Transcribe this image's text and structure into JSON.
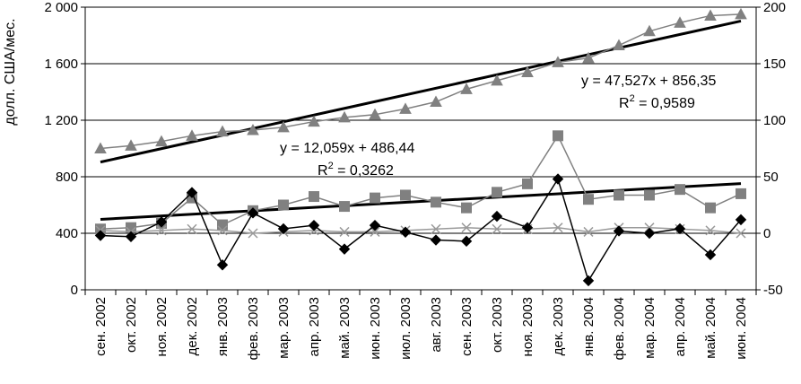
{
  "chart_data": {
    "type": "line",
    "ylabel": "долл. США/мес.",
    "ylim_left": [
      0,
      2000
    ],
    "ylim_right": [
      -50,
      200
    ],
    "y_ticks_left": [
      "0",
      "400",
      "800",
      "1 200",
      "1 600",
      "2 000"
    ],
    "y_ticks_right": [
      "-50",
      "0",
      "50",
      "100",
      "150",
      "200"
    ],
    "grid": true,
    "categories": [
      "сен. 2002",
      "окт. 2002",
      "ноя. 2002",
      "дек. 2002",
      "янв. 2003",
      "фев. 2003",
      "мар. 2003",
      "апр. 2003",
      "май. 2003",
      "июн. 2003",
      "июл. 2003",
      "авг. 2003",
      "сен. 2003",
      "окт. 2003",
      "ноя. 2003",
      "дек. 2003",
      "янв. 2004",
      "фев. 2004",
      "мар. 2004",
      "апр. 2004",
      "май. 2004",
      "июн. 2004"
    ],
    "series": [
      {
        "marker": "triangle",
        "axis": "left",
        "color": "#808080",
        "values": [
          1000,
          1020,
          1050,
          1090,
          1120,
          1130,
          1150,
          1190,
          1220,
          1240,
          1280,
          1330,
          1420,
          1480,
          1540,
          1610,
          1640,
          1730,
          1830,
          1890,
          1940,
          1950
        ]
      },
      {
        "marker": "square",
        "axis": "left",
        "color": "#808080",
        "values": [
          430,
          440,
          470,
          650,
          460,
          560,
          600,
          660,
          590,
          650,
          670,
          620,
          580,
          690,
          750,
          1090,
          640,
          670,
          670,
          710,
          580,
          680
        ]
      },
      {
        "marker": "cross",
        "axis": "left",
        "color": "#999999",
        "values": [
          420,
          410,
          420,
          430,
          420,
          400,
          410,
          420,
          410,
          410,
          420,
          430,
          440,
          430,
          430,
          440,
          410,
          440,
          440,
          430,
          420,
          400
        ]
      },
      {
        "marker": "diamond",
        "axis": "right",
        "color": "#000000",
        "values": [
          -2,
          -3,
          10,
          36,
          -28,
          18,
          4,
          7,
          -14,
          7,
          1,
          -6,
          -7,
          15,
          5,
          48,
          -42,
          2,
          0,
          4,
          -19,
          12
        ]
      }
    ],
    "trendlines": [
      {
        "series_index": 0,
        "axis": "left",
        "slope": 47.527,
        "intercept": 856.35,
        "equation": "y = 47,527x  + 856,35",
        "r2_label": "R",
        "r2_sup": "2",
        "r2_value": " = 0,9589"
      },
      {
        "series_index": 1,
        "axis": "left",
        "slope": 12.059,
        "intercept": 486.44,
        "equation": "y = 12,059x  + 486,44",
        "r2_label": "R",
        "r2_sup": "2",
        "r2_value": " = 0,3262"
      }
    ]
  }
}
